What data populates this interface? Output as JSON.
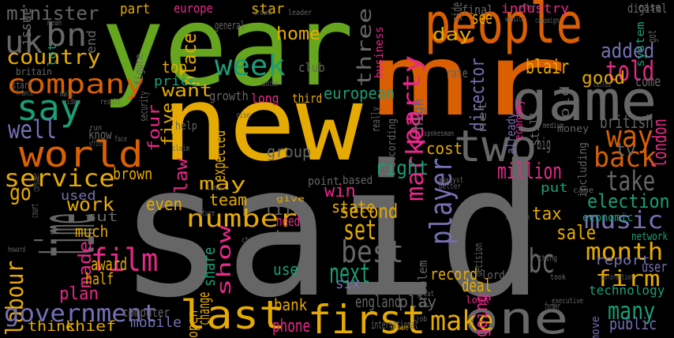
{
  "palette": {
    "green": "#66a61e",
    "orange": "#d95f02",
    "gold": "#e6ab02",
    "grey": "#666666",
    "teal": "#1b9e77",
    "pink": "#e7298a",
    "purple": "#7570b3",
    "brown": "#a6761d",
    "background": "#000000"
  },
  "words": [
    {
      "text": "said",
      "color": "grey"
    },
    {
      "text": "year",
      "color": "green"
    },
    {
      "text": "new",
      "color": "gold"
    },
    {
      "text": "mr",
      "color": "orange"
    },
    {
      "text": "people",
      "color": "orange"
    },
    {
      "text": "game",
      "color": "grey"
    },
    {
      "text": "first",
      "color": "gold"
    },
    {
      "text": "one",
      "color": "grey"
    },
    {
      "text": "last",
      "color": "gold"
    },
    {
      "text": "two",
      "color": "grey"
    },
    {
      "text": "time",
      "color": "grey"
    },
    {
      "text": "world",
      "color": "orange"
    },
    {
      "text": "say",
      "color": "teal"
    },
    {
      "text": "company",
      "color": "orange"
    },
    {
      "text": "uk",
      "color": "grey"
    },
    {
      "text": "bn",
      "color": "grey"
    },
    {
      "text": "country",
      "color": "gold"
    },
    {
      "text": "minister",
      "color": "grey"
    },
    {
      "text": "well",
      "color": "purple"
    },
    {
      "text": "service",
      "color": "gold"
    },
    {
      "text": "film",
      "color": "pink"
    },
    {
      "text": "labour",
      "color": "gold"
    },
    {
      "text": "government",
      "color": "purple"
    },
    {
      "text": "week",
      "color": "teal"
    },
    {
      "text": "told",
      "color": "pink"
    },
    {
      "text": "way",
      "color": "orange"
    },
    {
      "text": "back",
      "color": "orange"
    },
    {
      "text": "take",
      "color": "grey"
    },
    {
      "text": "bbc",
      "color": "grey"
    },
    {
      "text": "best",
      "color": "grey"
    },
    {
      "text": "next",
      "color": "teal"
    },
    {
      "text": "set",
      "color": "gold"
    },
    {
      "text": "number",
      "color": "gold"
    },
    {
      "text": "show",
      "color": "pink"
    },
    {
      "text": "made",
      "color": "pink"
    },
    {
      "text": "make",
      "color": "gold"
    },
    {
      "text": "many",
      "color": "teal"
    },
    {
      "text": "music",
      "color": "purple"
    },
    {
      "text": "month",
      "color": "gold"
    },
    {
      "text": "firm",
      "color": "gold"
    },
    {
      "text": "player",
      "color": "purple"
    },
    {
      "text": "market",
      "color": "pink"
    },
    {
      "text": "party",
      "color": "pink"
    },
    {
      "text": "three",
      "color": "grey"
    },
    {
      "text": "million",
      "color": "pink"
    },
    {
      "text": "election",
      "color": "teal"
    },
    {
      "text": "added",
      "color": "purple"
    },
    {
      "text": "good",
      "color": "gold"
    },
    {
      "text": "home",
      "color": "gold"
    },
    {
      "text": "day",
      "color": "gold"
    },
    {
      "text": "see",
      "color": "gold"
    },
    {
      "text": "blair",
      "color": "gold"
    },
    {
      "text": "want",
      "color": "gold"
    },
    {
      "text": "place",
      "color": "gold"
    },
    {
      "text": "top",
      "color": "gold"
    },
    {
      "text": "price",
      "color": "teal"
    },
    {
      "text": "work",
      "color": "gold"
    },
    {
      "text": "may",
      "color": "gold"
    },
    {
      "text": "win",
      "color": "pink"
    },
    {
      "text": "second",
      "color": "gold"
    },
    {
      "text": "right",
      "color": "teal"
    },
    {
      "text": "cost",
      "color": "gold"
    },
    {
      "text": "group",
      "color": "grey"
    },
    {
      "text": "brown",
      "color": "gold"
    },
    {
      "text": "go",
      "color": "gold"
    },
    {
      "text": "european",
      "color": "teal"
    },
    {
      "text": "director",
      "color": "purple"
    },
    {
      "text": "british",
      "color": "grey"
    },
    {
      "text": "london",
      "color": "pink"
    },
    {
      "text": "tv",
      "color": "grey"
    },
    {
      "text": "come",
      "color": "grey"
    },
    {
      "text": "sale",
      "color": "gold"
    },
    {
      "text": "tax",
      "color": "gold"
    },
    {
      "text": "report",
      "color": "purple"
    },
    {
      "text": "technology",
      "color": "teal"
    },
    {
      "text": "public",
      "color": "purple"
    },
    {
      "text": "user",
      "color": "purple"
    },
    {
      "text": "record",
      "color": "gold"
    },
    {
      "text": "deal",
      "color": "gold"
    },
    {
      "text": "play",
      "color": "grey"
    },
    {
      "text": "england",
      "color": "grey"
    },
    {
      "text": "phone",
      "color": "pink"
    },
    {
      "text": "bank",
      "color": "gold"
    },
    {
      "text": "six",
      "color": "purple"
    },
    {
      "text": "use",
      "color": "teal"
    },
    {
      "text": "tory",
      "color": "grey"
    },
    {
      "text": "life",
      "color": "grey"
    },
    {
      "text": "need",
      "color": "pink"
    },
    {
      "text": "state",
      "color": "gold"
    },
    {
      "text": "team",
      "color": "gold"
    },
    {
      "text": "even",
      "color": "gold"
    },
    {
      "text": "share",
      "color": "teal"
    },
    {
      "text": "award",
      "color": "gold"
    },
    {
      "text": "much",
      "color": "gold"
    },
    {
      "text": "half",
      "color": "gold"
    },
    {
      "text": "plan",
      "color": "pink"
    },
    {
      "text": "think",
      "color": "gold"
    },
    {
      "text": "chief",
      "color": "gold"
    },
    {
      "text": "mobile",
      "color": "purple"
    },
    {
      "text": "going",
      "color": "pink"
    },
    {
      "text": "part",
      "color": "gold"
    },
    {
      "text": "star",
      "color": "gold"
    },
    {
      "text": "four",
      "color": "pink"
    },
    {
      "text": "five",
      "color": "gold"
    },
    {
      "text": "law",
      "color": "pink"
    },
    {
      "text": "expected",
      "color": "gold"
    },
    {
      "text": "used",
      "color": "purple"
    },
    {
      "text": "put",
      "color": "teal"
    },
    {
      "text": "already",
      "color": "purple"
    },
    {
      "text": "economy",
      "color": "pink"
    },
    {
      "text": "net",
      "color": "grey"
    },
    {
      "text": "still",
      "color": "grey"
    },
    {
      "text": "old",
      "color": "grey"
    },
    {
      "text": "high",
      "color": "grey"
    },
    {
      "text": "problem",
      "color": "grey"
    },
    {
      "text": "industry",
      "color": "pink"
    },
    {
      "text": "final",
      "color": "grey"
    },
    {
      "text": "digital",
      "color": "grey"
    },
    {
      "text": "system",
      "color": "teal"
    },
    {
      "text": "issue",
      "color": "grey"
    },
    {
      "text": "business",
      "color": "pink"
    },
    {
      "text": "rate",
      "color": "grey"
    },
    {
      "text": "growth",
      "color": "grey"
    },
    {
      "text": "third",
      "color": "gold"
    },
    {
      "text": "long",
      "color": "pink"
    },
    {
      "text": "club",
      "color": "grey"
    },
    {
      "text": "end",
      "color": "grey"
    },
    {
      "text": "europe",
      "color": "pink"
    },
    {
      "text": "open",
      "color": "gold"
    },
    {
      "text": "change",
      "color": "gold"
    },
    {
      "text": "lot",
      "color": "teal"
    },
    {
      "text": "know",
      "color": "grey"
    },
    {
      "text": "help",
      "color": "grey"
    },
    {
      "text": "cut",
      "color": "grey"
    },
    {
      "text": "economic",
      "color": "teal"
    },
    {
      "text": "network",
      "color": "teal"
    },
    {
      "text": "computer",
      "color": "grey"
    },
    {
      "text": "including",
      "color": "grey"
    },
    {
      "text": "point",
      "color": "grey"
    },
    {
      "text": "based",
      "color": "grey"
    },
    {
      "text": "according",
      "color": "grey"
    },
    {
      "text": "money",
      "color": "grey"
    },
    {
      "text": "side",
      "color": "grey"
    },
    {
      "text": "case",
      "color": "grey"
    },
    {
      "text": "figure",
      "color": "grey"
    },
    {
      "text": "britain",
      "color": "grey"
    },
    {
      "text": "start",
      "color": "grey"
    },
    {
      "text": "big",
      "color": "grey"
    },
    {
      "text": "look",
      "color": "pink"
    },
    {
      "text": "lord",
      "color": "grey"
    },
    {
      "text": "former",
      "color": "grey"
    },
    {
      "text": "move",
      "color": "purple"
    },
    {
      "text": "hit",
      "color": "grey"
    },
    {
      "text": "decision",
      "color": "grey"
    },
    {
      "text": "security",
      "color": "grey"
    },
    {
      "text": "general",
      "color": "grey"
    },
    {
      "text": "nation",
      "color": "grey"
    },
    {
      "text": "international",
      "color": "grey"
    },
    {
      "text": "mean",
      "color": "grey"
    },
    {
      "text": "offer",
      "color": "grey"
    },
    {
      "text": "website",
      "color": "grey"
    },
    {
      "text": "campaign",
      "color": "grey"
    },
    {
      "text": "got",
      "color": "grey"
    },
    {
      "text": "came",
      "color": "grey"
    },
    {
      "text": "called",
      "color": "grey"
    },
    {
      "text": "information",
      "color": "grey"
    },
    {
      "text": "took",
      "color": "grey"
    },
    {
      "text": "executive",
      "color": "grey"
    },
    {
      "text": "thing",
      "color": "grey"
    },
    {
      "text": "action",
      "color": "grey"
    },
    {
      "text": "future",
      "color": "grey"
    },
    {
      "text": "line",
      "color": "grey"
    },
    {
      "text": "spokesman",
      "color": "grey"
    },
    {
      "text": "analyst",
      "color": "grey"
    },
    {
      "text": "better",
      "color": "grey"
    },
    {
      "text": "medium",
      "color": "grey"
    },
    {
      "text": "claim",
      "color": "grey"
    },
    {
      "text": "france",
      "color": "grey"
    },
    {
      "text": "video",
      "color": "grey"
    },
    {
      "text": "male",
      "color": "grey"
    },
    {
      "text": "result",
      "color": "grey"
    },
    {
      "text": "around",
      "color": "grey"
    },
    {
      "text": "leader",
      "color": "grey"
    },
    {
      "text": "another",
      "color": "grey"
    },
    {
      "text": "really",
      "color": "grey"
    },
    {
      "text": "howard",
      "color": "grey"
    },
    {
      "text": "great",
      "color": "grey"
    },
    {
      "text": "software",
      "color": "gold"
    },
    {
      "text": "child",
      "color": "grey"
    },
    {
      "text": "give",
      "color": "gold"
    },
    {
      "text": "consumer",
      "color": "grey"
    },
    {
      "text": "office",
      "color": "grey"
    },
    {
      "text": "face",
      "color": "grey"
    },
    {
      "text": "run",
      "color": "grey"
    },
    {
      "text": "rise",
      "color": "grey"
    },
    {
      "text": "court",
      "color": "grey"
    },
    {
      "text": "job",
      "color": "grey"
    },
    {
      "text": "mp",
      "color": "grey"
    }
  ]
}
